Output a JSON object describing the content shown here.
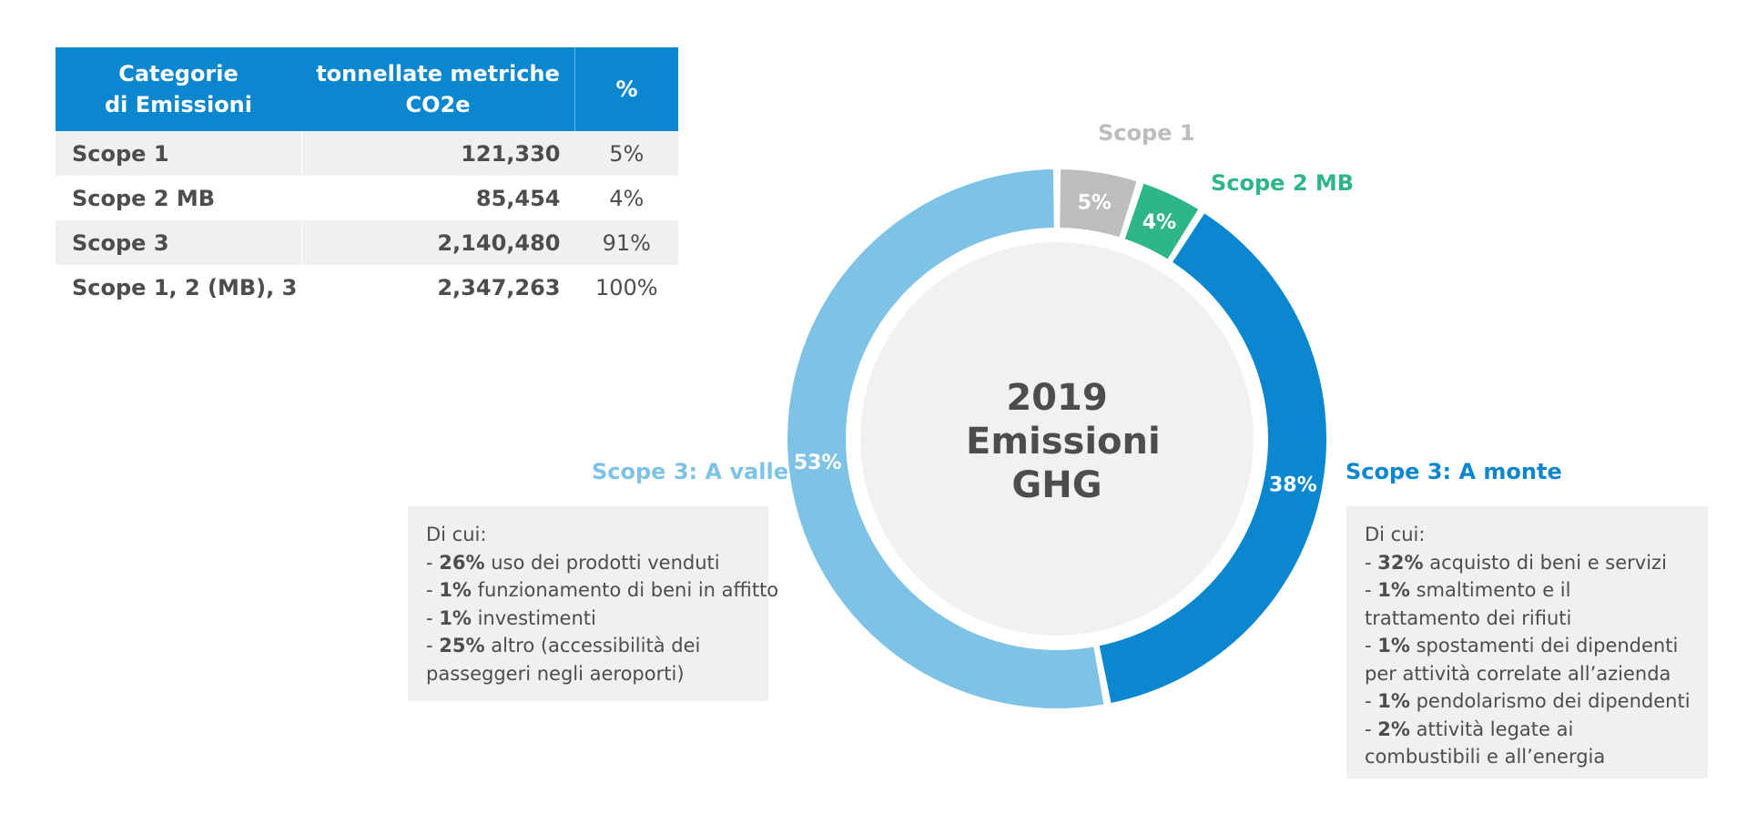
{
  "table": {
    "headers": [
      "Categorie\ndi Emissioni",
      "tonnellate metriche\nCO2e",
      "%"
    ],
    "rows": [
      {
        "label": "Scope 1",
        "value": "121,330",
        "pct": "5%"
      },
      {
        "label": "Scope 2 MB",
        "value": "85,454",
        "pct": "4%"
      },
      {
        "label": "Scope 3",
        "value": "2,140,480",
        "pct": "91%"
      },
      {
        "label": "Scope 1,  2 (MB), 3",
        "value": "2,347,263",
        "pct": "100%"
      }
    ]
  },
  "chart_data": {
    "type": "pie",
    "donut": true,
    "center_text": [
      "2019",
      "Emissioni",
      "GHG"
    ],
    "slices": [
      {
        "label": "Scope 1",
        "value": 5,
        "display": "5%",
        "color": "#bdbdbd"
      },
      {
        "label": "Scope 2 MB",
        "value": 4,
        "display": "4%",
        "color": "#2fb58a"
      },
      {
        "label": "Scope 3: A monte",
        "value": 38,
        "display": "38%",
        "color": "#0a87cf"
      },
      {
        "label": "Scope 3: A valle",
        "value": 53,
        "display": "53%",
        "color": "#7ec3e6"
      }
    ]
  },
  "callouts": {
    "scope1_title": "Scope 1",
    "scope2_title": "Scope 2 MB",
    "valle_title": "Scope 3: A valle",
    "monte_title": "Scope 3: A monte",
    "valle_box": {
      "intro": "Di cui:",
      "items": [
        {
          "pct": "26%",
          "text": " uso dei prodotti venduti"
        },
        {
          "pct": "1%",
          "text": " funzionamento di beni in affitto"
        },
        {
          "pct": "1%",
          "text": " investimenti"
        },
        {
          "pct": "25%",
          "text": " altro (accessibilità dei passeggeri negli aeroporti)"
        }
      ]
    },
    "monte_box": {
      "intro": "Di cui:",
      "items": [
        {
          "pct": "32%",
          "text": " acquisto di beni e servizi"
        },
        {
          "pct": "1%",
          "text": " smaltimento e il trattamento dei rifiuti"
        },
        {
          "pct": "1%",
          "text": " spostamenti dei dipendenti per attività correlate all’azienda"
        },
        {
          "pct": "1%",
          "text": " pendolarismo dei dipendenti"
        },
        {
          "pct": "2%",
          "text": " attività legate ai combustibili e all’energia"
        }
      ]
    }
  }
}
